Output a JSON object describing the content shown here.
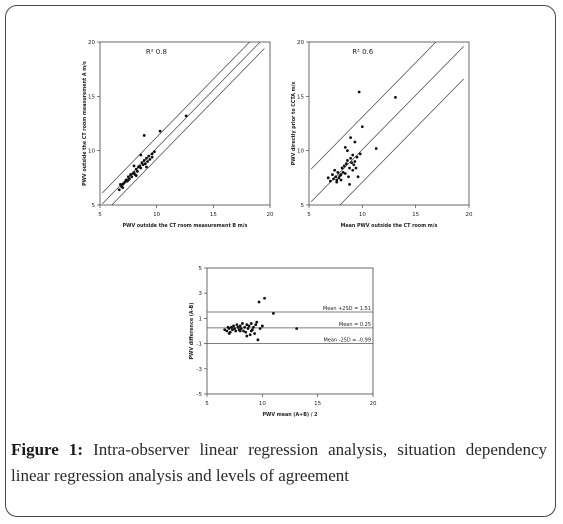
{
  "figure": {
    "label": "Figure 1:",
    "caption": "Intra-observer linear regression analysis, situation dependency linear regression analysis and levels of agreement"
  },
  "chart_data": [
    {
      "type": "scatter",
      "annotation": "R² 0.8",
      "xlabel": "PWV outside the CT room measurement B m/s",
      "ylabel": "PWV outside the CT room measurement A m/s",
      "xlim": [
        5,
        20
      ],
      "ylim": [
        5,
        20
      ],
      "xticks": [
        5,
        10,
        15,
        20
      ],
      "yticks": [
        5,
        10,
        15,
        20
      ],
      "tick_labels_x": [
        "5",
        "10",
        "15",
        "20"
      ],
      "tick_labels_y": [
        "5",
        "10",
        "15",
        "20"
      ],
      "fit_lines": [
        {
          "x": [
            5.2,
            19.5
          ],
          "y": [
            6.1,
            21.4
          ]
        },
        {
          "x": [
            5.2,
            19.5
          ],
          "y": [
            5.1,
            20.4
          ]
        },
        {
          "x": [
            5.2,
            19.5
          ],
          "y": [
            4.1,
            19.4
          ]
        }
      ],
      "points": [
        [
          6.7,
          6.4
        ],
        [
          6.9,
          6.7
        ],
        [
          7.0,
          6.9
        ],
        [
          7.1,
          7.0
        ],
        [
          7.2,
          7.1
        ],
        [
          7.3,
          7.3
        ],
        [
          7.4,
          7.2
        ],
        [
          7.5,
          7.6
        ],
        [
          7.6,
          7.4
        ],
        [
          7.7,
          7.8
        ],
        [
          7.8,
          7.6
        ],
        [
          7.9,
          7.9
        ],
        [
          8.0,
          8.0
        ],
        [
          8.1,
          7.8
        ],
        [
          8.2,
          8.3
        ],
        [
          8.3,
          8.1
        ],
        [
          8.4,
          8.5
        ],
        [
          8.5,
          8.6
        ],
        [
          8.6,
          8.4
        ],
        [
          8.7,
          8.9
        ],
        [
          8.8,
          8.7
        ],
        [
          8.9,
          9.1
        ],
        [
          9.0,
          8.8
        ],
        [
          9.1,
          9.3
        ],
        [
          9.2,
          9.0
        ],
        [
          9.3,
          9.5
        ],
        [
          9.4,
          9.2
        ],
        [
          9.6,
          9.7
        ],
        [
          8.9,
          11.4
        ],
        [
          10.3,
          11.8
        ],
        [
          12.6,
          13.2
        ],
        [
          9.6,
          9.4
        ],
        [
          9.8,
          9.9
        ],
        [
          7.5,
          7.3
        ],
        [
          7.0,
          6.6
        ],
        [
          8.6,
          9.6
        ],
        [
          8.0,
          8.6
        ],
        [
          9.1,
          8.5
        ],
        [
          8.2,
          7.7
        ],
        [
          6.8,
          6.9
        ]
      ]
    },
    {
      "type": "scatter",
      "annotation": "R² 0.6",
      "xlabel": "Mean PWV outside the CT room m/s",
      "ylabel": "PWV directly prior to CCTA m/s",
      "xlim": [
        5,
        20
      ],
      "ylim": [
        5,
        20
      ],
      "xticks": [
        5,
        10,
        15,
        20
      ],
      "yticks": [
        5,
        10,
        15,
        20
      ],
      "tick_labels_x": [
        "5",
        "10",
        "15",
        "20"
      ],
      "tick_labels_y": [
        "5",
        "10",
        "15",
        "20"
      ],
      "fit_lines": [
        {
          "x": [
            5.2,
            19.5
          ],
          "y": [
            8.3,
            22.6
          ]
        },
        {
          "x": [
            5.2,
            19.5
          ],
          "y": [
            5.3,
            19.6
          ]
        },
        {
          "x": [
            5.2,
            19.5
          ],
          "y": [
            2.3,
            16.6
          ]
        }
      ],
      "points": [
        [
          6.8,
          7.5
        ],
        [
          7.0,
          7.2
        ],
        [
          7.2,
          7.8
        ],
        [
          7.3,
          7.4
        ],
        [
          7.5,
          7.6
        ],
        [
          7.6,
          7.1
        ],
        [
          7.7,
          8.0
        ],
        [
          7.8,
          7.5
        ],
        [
          7.9,
          7.7
        ],
        [
          8.0,
          7.3
        ],
        [
          8.1,
          8.4
        ],
        [
          8.2,
          8.0
        ],
        [
          8.3,
          8.6
        ],
        [
          8.4,
          7.9
        ],
        [
          8.5,
          8.8
        ],
        [
          8.6,
          9.1
        ],
        [
          8.7,
          7.6
        ],
        [
          8.8,
          8.4
        ],
        [
          8.9,
          9.3
        ],
        [
          9.0,
          8.9
        ],
        [
          9.1,
          9.6
        ],
        [
          9.2,
          8.7
        ],
        [
          9.3,
          9.0
        ],
        [
          9.5,
          9.4
        ],
        [
          9.6,
          7.6
        ],
        [
          8.4,
          10.3
        ],
        [
          8.9,
          11.2
        ],
        [
          9.3,
          10.8
        ],
        [
          9.7,
          15.4
        ],
        [
          10.0,
          12.2
        ],
        [
          11.3,
          10.2
        ],
        [
          13.1,
          14.9
        ],
        [
          8.8,
          6.9
        ],
        [
          9.4,
          8.4
        ],
        [
          7.4,
          8.2
        ],
        [
          8.0,
          7.8
        ],
        [
          9.8,
          9.7
        ],
        [
          8.6,
          10.0
        ],
        [
          7.6,
          7.3
        ],
        [
          9.1,
          8.2
        ]
      ]
    },
    {
      "type": "scatter",
      "subtype": "bland-altman",
      "xlabel": "PWV mean (A+B) / 2",
      "ylabel": "PWV difference (A-B)",
      "xlim": [
        5,
        20
      ],
      "ylim": [
        -5,
        5
      ],
      "xticks": [
        5,
        10,
        15,
        20
      ],
      "yticks": [
        -5,
        -3,
        -1,
        1,
        3,
        5
      ],
      "tick_labels_x": [
        "5",
        "10",
        "15",
        "20"
      ],
      "tick_labels_y": [
        "-5",
        "-3",
        "-1",
        "1",
        "3",
        "5"
      ],
      "reference_lines": [
        {
          "y": 1.51,
          "label": "Mean +2SD = 1.51"
        },
        {
          "y": 0.25,
          "label": "Mean = 0.25"
        },
        {
          "y": -0.99,
          "label": "Mean -2SD = -0.99"
        }
      ],
      "points": [
        [
          6.6,
          0.1
        ],
        [
          6.8,
          0.0
        ],
        [
          7.0,
          0.2
        ],
        [
          7.1,
          -0.1
        ],
        [
          7.2,
          0.3
        ],
        [
          7.3,
          0.1
        ],
        [
          7.4,
          0.4
        ],
        [
          7.5,
          0.2
        ],
        [
          7.6,
          0.0
        ],
        [
          7.7,
          0.5
        ],
        [
          7.8,
          0.3
        ],
        [
          7.9,
          0.1
        ],
        [
          8.0,
          0.4
        ],
        [
          8.1,
          0.2
        ],
        [
          8.2,
          0.6
        ],
        [
          8.3,
          0.0
        ],
        [
          8.4,
          0.3
        ],
        [
          8.5,
          -0.1
        ],
        [
          8.6,
          0.5
        ],
        [
          8.7,
          0.2
        ],
        [
          8.8,
          0.4
        ],
        [
          8.9,
          -0.3
        ],
        [
          9.0,
          0.6
        ],
        [
          9.1,
          0.1
        ],
        [
          9.2,
          0.3
        ],
        [
          9.3,
          -0.2
        ],
        [
          9.4,
          0.5
        ],
        [
          9.5,
          0.7
        ],
        [
          9.6,
          -0.7
        ],
        [
          9.7,
          2.3
        ],
        [
          10.2,
          2.6
        ],
        [
          11.0,
          1.4
        ],
        [
          13.1,
          0.2
        ],
        [
          8.0,
          0.0
        ],
        [
          7.0,
          -0.2
        ],
        [
          9.8,
          0.2
        ],
        [
          8.6,
          -0.4
        ],
        [
          6.9,
          0.3
        ],
        [
          10.0,
          0.4
        ],
        [
          9.0,
          0.0
        ]
      ]
    }
  ]
}
